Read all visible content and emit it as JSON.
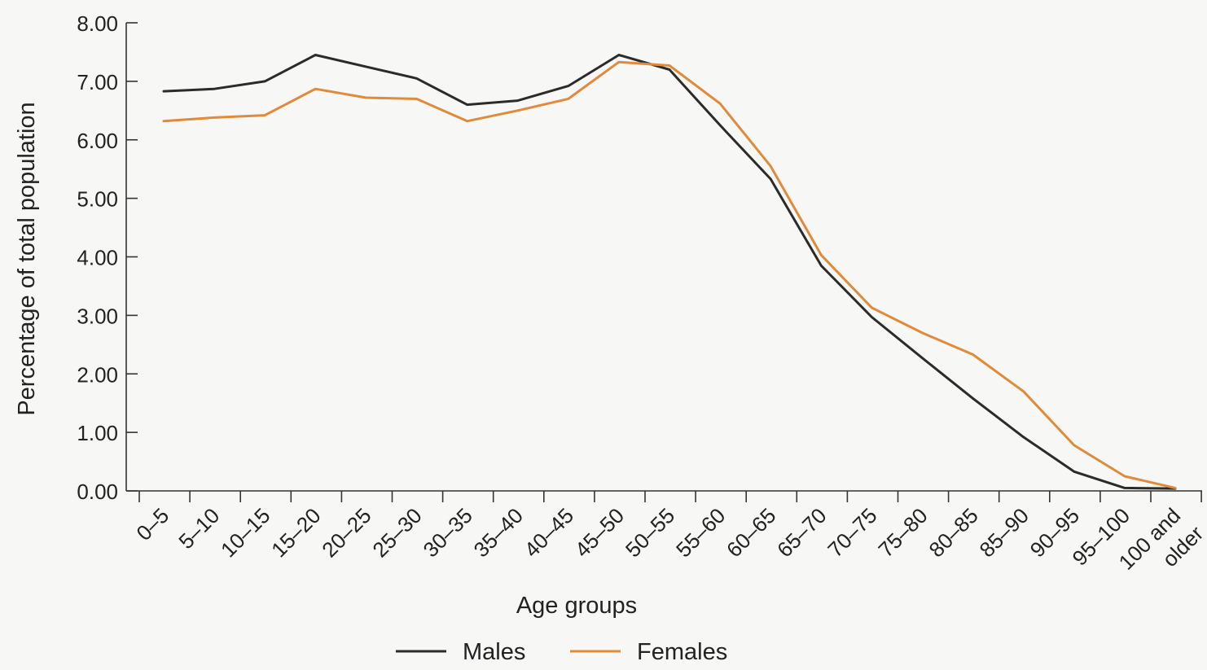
{
  "chart_data": {
    "type": "line",
    "xlabel": "Age groups",
    "ylabel": "Percentage of total population",
    "ylim": [
      0,
      8
    ],
    "y_ticks": [
      "0.00",
      "1.00",
      "2.00",
      "3.00",
      "4.00",
      "5.00",
      "6.00",
      "7.00",
      "8.00"
    ],
    "categories": [
      "0–5",
      "5–10",
      "10–15",
      "15–20",
      "20–25",
      "25–30",
      "30–35",
      "35–40",
      "40–45",
      "45–50",
      "50–55",
      "55–60",
      "60–65",
      "65–70",
      "70–75",
      "75–80",
      "80–85",
      "85–90",
      "90–95",
      "95–100",
      "100 and older"
    ],
    "series": [
      {
        "name": "Males",
        "color": "#2b2b2b",
        "values": [
          6.83,
          6.87,
          7.0,
          7.45,
          7.25,
          7.05,
          6.6,
          6.67,
          6.92,
          7.45,
          7.2,
          6.25,
          5.33,
          3.85,
          2.97,
          2.27,
          1.58,
          0.92,
          0.33,
          0.05,
          0.04
        ]
      },
      {
        "name": "Females",
        "color": "#e08a3c",
        "values": [
          6.32,
          6.38,
          6.42,
          6.87,
          6.72,
          6.7,
          6.32,
          6.5,
          6.7,
          7.33,
          7.27,
          6.62,
          5.55,
          4.03,
          3.13,
          2.7,
          2.33,
          1.7,
          0.78,
          0.25,
          0.05
        ]
      }
    ],
    "legend_position": "bottom-center",
    "grid": false
  }
}
